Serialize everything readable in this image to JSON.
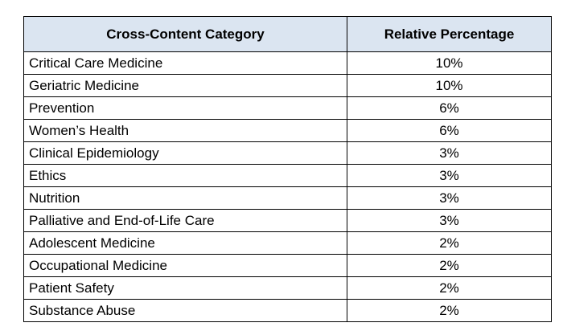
{
  "table": {
    "headers": [
      "Cross-Content Category",
      "Relative Percentage"
    ],
    "rows": [
      {
        "category": "Critical Care Medicine",
        "percentage": "10%"
      },
      {
        "category": "Geriatric Medicine",
        "percentage": "10%"
      },
      {
        "category": "Prevention",
        "percentage": "6%"
      },
      {
        "category": "Women’s Health",
        "percentage": "6%"
      },
      {
        "category": "Clinical Epidemiology",
        "percentage": "3%"
      },
      {
        "category": "Ethics",
        "percentage": "3%"
      },
      {
        "category": "Nutrition",
        "percentage": "3%"
      },
      {
        "category": "Palliative and End-of-Life Care",
        "percentage": "3%"
      },
      {
        "category": "Adolescent Medicine",
        "percentage": "2%"
      },
      {
        "category": "Occupational Medicine",
        "percentage": "2%"
      },
      {
        "category": "Patient Safety",
        "percentage": "2%"
      },
      {
        "category": "Substance Abuse",
        "percentage": "2%"
      }
    ]
  },
  "colors": {
    "header_background": "#dbe5f1",
    "border": "#000000"
  }
}
